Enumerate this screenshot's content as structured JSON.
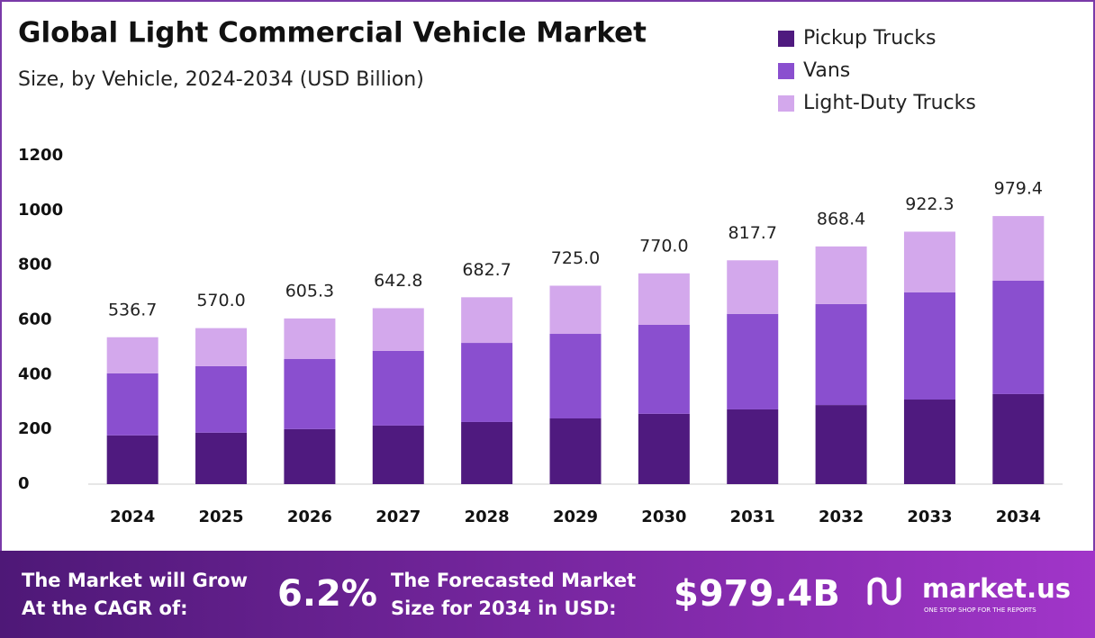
{
  "chart_data": {
    "type": "stacked_bar",
    "title": "Global Light Commercial Vehicle Market",
    "subtitle": "Size, by Vehicle, 2024-2034 (USD Billion)",
    "categories": [
      "2024",
      "2025",
      "2026",
      "2027",
      "2028",
      "2029",
      "2030",
      "2031",
      "2032",
      "2033",
      "2034"
    ],
    "series": [
      {
        "name": "Pickup Trucks",
        "color": "#4f1a7f",
        "values": [
          178,
          188,
          201,
          214,
          227,
          240,
          257,
          273,
          289,
          309,
          329
        ]
      },
      {
        "name": "Vans",
        "color": "#8a4fcf",
        "values": [
          227,
          243,
          256,
          273,
          289,
          309,
          325,
          349,
          369,
          392,
          414
        ]
      },
      {
        "name": "Light-Duty Trucks",
        "color": "#d3a8ec",
        "values": [
          131.7,
          139,
          148.3,
          155.8,
          166.7,
          176,
          188,
          195.7,
          210.4,
          221.3,
          236.4
        ]
      }
    ],
    "totals": [
      536.7,
      570.0,
      605.3,
      642.8,
      682.7,
      725.0,
      770.0,
      817.7,
      868.4,
      922.3,
      979.4
    ],
    "total_labels": [
      "536.7",
      "570.0",
      "605.3",
      "642.8",
      "682.7",
      "725.0",
      "770.0",
      "817.7",
      "868.4",
      "922.3",
      "979.4"
    ],
    "ylim": [
      0,
      1200
    ],
    "yticks": [
      0,
      200,
      400,
      600,
      800,
      1000,
      1200
    ],
    "grid": false,
    "legend": "top-right"
  },
  "footer": {
    "cagr_text": [
      "The Market will Grow",
      "At the CAGR of:"
    ],
    "cagr": "6.2%",
    "forecast_text": [
      "The Forecasted Market",
      "Size for 2034 in USD:"
    ],
    "forecast": "$979.4B",
    "brand": "market.us",
    "tagline": "ONE STOP SHOP FOR THE REPORTS"
  }
}
